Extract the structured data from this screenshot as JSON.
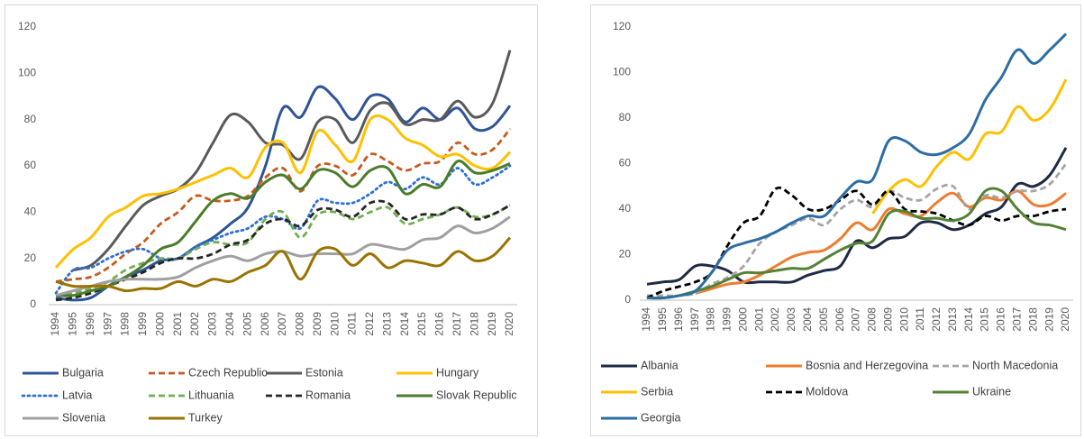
{
  "chart_data": [
    {
      "type": "line",
      "categories": [
        "1994",
        "1995",
        "1996",
        "1997",
        "1998",
        "1999",
        "2000",
        "2001",
        "2002",
        "2003",
        "2004",
        "2005",
        "2006",
        "2007",
        "2008",
        "2009",
        "2010",
        "2011",
        "2012",
        "2013",
        "2014",
        "2015",
        "2016",
        "2017",
        "2018",
        "2019",
        "2020"
      ],
      "ylim": [
        0,
        120
      ],
      "yticks": [
        0,
        20,
        40,
        60,
        80,
        100,
        120
      ],
      "grid": false,
      "series": [
        {
          "name": "Bulgaria",
          "color": "#2e5597",
          "style": "solid",
          "values": [
            3,
            2,
            3,
            8,
            12,
            15,
            19,
            20,
            25,
            29,
            35,
            42,
            60,
            85,
            81,
            94,
            89,
            80,
            90,
            89,
            79,
            85,
            80,
            85,
            76,
            77,
            86
          ]
        },
        {
          "name": "Czech Republic",
          "color": "#c55a1e",
          "style": "dashed",
          "values": [
            10,
            11,
            12,
            16,
            22,
            27,
            35,
            40,
            47,
            45,
            45,
            47,
            55,
            59,
            49,
            60,
            60,
            56,
            65,
            62,
            58,
            61,
            62,
            70,
            65,
            67,
            76
          ]
        },
        {
          "name": "Estonia",
          "color": "#5a5a5a",
          "style": "solid",
          "values": [
            null,
            15,
            17,
            24,
            34,
            43,
            47,
            50,
            57,
            70,
            82,
            79,
            70,
            69,
            63,
            79,
            80,
            70,
            84,
            87,
            78,
            80,
            80,
            88,
            81,
            87,
            110
          ]
        },
        {
          "name": "Hungary",
          "color": "#ffc000",
          "style": "solid",
          "values": [
            16,
            24,
            29,
            38,
            42,
            47,
            48,
            50,
            53,
            56,
            59,
            55,
            68,
            70,
            57,
            75,
            69,
            62,
            80,
            80,
            72,
            69,
            64,
            65,
            60,
            59,
            66
          ]
        },
        {
          "name": "Latvia",
          "color": "#2f6fd0",
          "style": "dotted",
          "values": [
            5,
            15,
            16,
            20,
            23,
            24,
            20,
            20,
            25,
            28,
            31,
            33,
            38,
            37,
            33,
            45,
            44,
            44,
            48,
            53,
            50,
            55,
            52,
            59,
            52,
            55,
            60
          ]
        },
        {
          "name": "Lithuania",
          "color": "#70b050",
          "style": "dashed",
          "values": [
            4,
            5,
            7,
            10,
            15,
            18,
            20,
            20,
            24,
            27,
            26,
            27,
            37,
            40,
            29,
            39,
            40,
            37,
            40,
            42,
            35,
            37,
            39,
            42,
            38,
            39,
            43
          ]
        },
        {
          "name": "Romania",
          "color": "#262626",
          "style": "dashed",
          "values": [
            2,
            3,
            5,
            8,
            11,
            14,
            18,
            20,
            20,
            22,
            26,
            28,
            35,
            37,
            34,
            41,
            41,
            38,
            44,
            44,
            37,
            39,
            39,
            42,
            37,
            39,
            43
          ]
        },
        {
          "name": "Slovak Republic",
          "color": "#4a7c2a",
          "style": "solid",
          "values": [
            4,
            4,
            6,
            8,
            12,
            17,
            24,
            27,
            36,
            45,
            48,
            46,
            53,
            56,
            50,
            58,
            57,
            51,
            58,
            59,
            48,
            52,
            51,
            62,
            57,
            58,
            61
          ]
        },
        {
          "name": "Slovenia",
          "color": "#a0a0a0",
          "style": "solid",
          "values": [
            4,
            6,
            8,
            10,
            11,
            11,
            11,
            12,
            16,
            19,
            21,
            19,
            22,
            23,
            21,
            22,
            22,
            22,
            26,
            25,
            24,
            28,
            29,
            34,
            31,
            33,
            38
          ]
        },
        {
          "name": "Turkey",
          "color": "#9a7300",
          "style": "solid",
          "values": [
            10,
            8,
            8,
            8,
            6,
            7,
            7,
            10,
            8,
            11,
            10,
            14,
            17,
            23,
            11,
            23,
            24,
            17,
            22,
            16,
            19,
            18,
            17,
            23,
            19,
            21,
            29
          ]
        }
      ]
    },
    {
      "type": "line",
      "categories": [
        "1994",
        "1995",
        "1996",
        "1997",
        "1998",
        "1999",
        "2000",
        "2001",
        "2002",
        "2003",
        "2004",
        "2005",
        "2006",
        "2007",
        "2008",
        "2009",
        "2010",
        "2011",
        "2012",
        "2013",
        "2014",
        "2015",
        "2016",
        "2017",
        "2018",
        "2019",
        "2020"
      ],
      "ylim": [
        0,
        120
      ],
      "yticks": [
        0,
        20,
        40,
        60,
        80,
        100,
        120
      ],
      "grid": false,
      "series": [
        {
          "name": "Albania",
          "color": "#1f2a44",
          "style": "solid",
          "values": [
            7,
            8,
            9,
            15,
            15,
            13,
            8,
            8,
            8,
            8,
            11,
            13,
            15,
            26,
            23,
            27,
            28,
            34,
            34,
            31,
            33,
            38,
            41,
            51,
            50,
            55,
            67
          ]
        },
        {
          "name": "Bosnia and Herzegovina",
          "color": "#ed7d31",
          "style": "solid",
          "values": [
            null,
            null,
            null,
            3,
            5,
            7,
            8,
            11,
            15,
            19,
            21,
            22,
            27,
            34,
            31,
            40,
            38,
            37,
            43,
            47,
            41,
            45,
            44,
            48,
            42,
            42,
            47
          ]
        },
        {
          "name": "North Macedonia",
          "color": "#a5a5a5",
          "style": "dashed",
          "values": [
            2,
            2,
            2,
            3,
            7,
            10,
            15,
            25,
            30,
            33,
            36,
            33,
            40,
            44,
            41,
            48,
            45,
            44,
            49,
            50,
            40,
            46,
            45,
            48,
            48,
            51,
            60
          ]
        },
        {
          "name": "Serbia",
          "color": "#ffc000",
          "style": "solid",
          "values": [
            null,
            null,
            null,
            null,
            null,
            null,
            null,
            null,
            null,
            null,
            null,
            null,
            null,
            null,
            38,
            48,
            53,
            50,
            59,
            65,
            62,
            73,
            74,
            85,
            79,
            84,
            97
          ]
        },
        {
          "name": "Moldova",
          "color": "#000000",
          "style": "dashed",
          "values": [
            1,
            4,
            6,
            8,
            12,
            24,
            34,
            37,
            49,
            46,
            40,
            40,
            44,
            48,
            42,
            48,
            40,
            39,
            38,
            35,
            33,
            37,
            35,
            37,
            37,
            39,
            40
          ]
        },
        {
          "name": "Ukraine",
          "color": "#548235",
          "style": "solid",
          "values": [
            1,
            1,
            2,
            4,
            6,
            9,
            12,
            12,
            13,
            14,
            14,
            18,
            22,
            25,
            26,
            38,
            39,
            36,
            36,
            35,
            38,
            48,
            48,
            40,
            34,
            33,
            31
          ]
        },
        {
          "name": "Georgia",
          "color": "#2e6da4",
          "style": "solid",
          "values": [
            1,
            1,
            2,
            4,
            12,
            22,
            25,
            27,
            30,
            34,
            37,
            37,
            45,
            52,
            53,
            70,
            70,
            65,
            64,
            67,
            73,
            88,
            98,
            110,
            104,
            110,
            117
          ]
        }
      ]
    }
  ]
}
